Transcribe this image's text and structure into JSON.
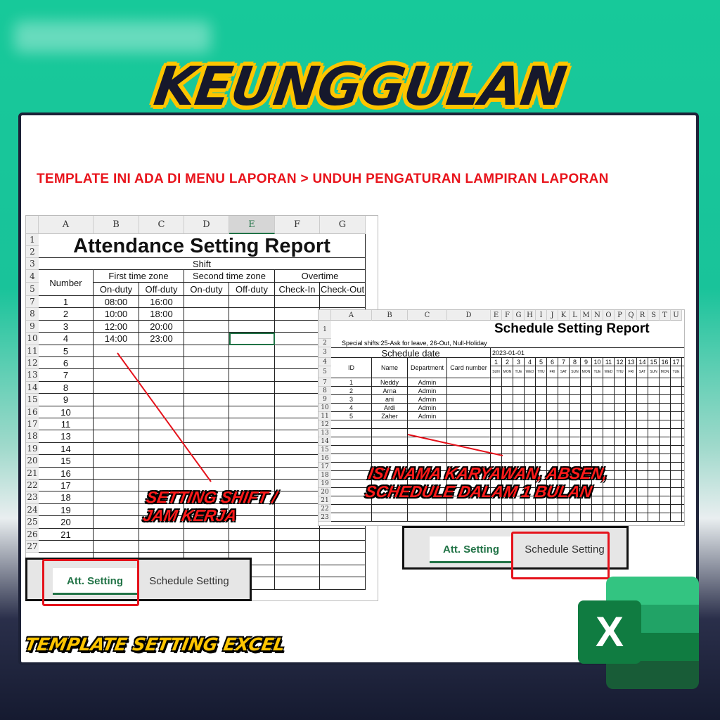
{
  "headline": "KEUNGGULAN",
  "subtitle": "TEMPLATE INI ADA DI MENU LAPORAN > UNDUH PENGATURAN LAMPIRAN LAPORAN",
  "attendance_sheet": {
    "columns": [
      "A",
      "B",
      "C",
      "D",
      "E",
      "F",
      "G"
    ],
    "selected_column": "E",
    "title": "Attendance Setting Report",
    "shift_label": "Shift",
    "number_label": "Number",
    "groups": [
      "First time zone",
      "Second time zone",
      "Overtime"
    ],
    "subheaders": [
      "On-duty",
      "Off-duty",
      "On-duty",
      "Off-duty",
      "Check-In",
      "Check-Out"
    ],
    "rows": [
      [
        "1",
        "08:00",
        "16:00"
      ],
      [
        "2",
        "10:00",
        "18:00"
      ],
      [
        "3",
        "12:00",
        "20:00"
      ],
      [
        "4",
        "14:00",
        "23:00"
      ],
      [
        "5"
      ],
      [
        "6"
      ],
      [
        "7"
      ],
      [
        "8"
      ],
      [
        "9"
      ],
      [
        "10"
      ],
      [
        "11"
      ],
      [
        "13"
      ],
      [
        "14"
      ],
      [
        "15"
      ],
      [
        "16"
      ],
      [
        "17"
      ],
      [
        "18"
      ],
      [
        "19"
      ],
      [
        "20"
      ],
      [
        "21"
      ]
    ]
  },
  "schedule_sheet": {
    "columns": [
      "A",
      "B",
      "C",
      "D",
      "E",
      "F",
      "G",
      "H",
      "I",
      "J",
      "K",
      "L",
      "M",
      "N",
      "O",
      "P",
      "Q",
      "R",
      "S",
      "T",
      "U"
    ],
    "title": "Schedule Setting Report",
    "special_shifts": "Special shifts:25-Ask for leave, 26-Out, Null-Holiday",
    "schedule_date_label": "Schedule date",
    "start_date": "2023-01-01",
    "headers": [
      "ID",
      "Name",
      "Department",
      "Card number"
    ],
    "days": [
      "1",
      "2",
      "3",
      "4",
      "5",
      "6",
      "7",
      "8",
      "9",
      "10",
      "11",
      "12",
      "13",
      "14",
      "15",
      "16",
      "17"
    ],
    "weekdays": [
      "SUN",
      "MON",
      "TUE",
      "WED",
      "THU",
      "FRI",
      "SAT",
      "SUN",
      "MON",
      "TUE",
      "WED",
      "THU",
      "FRI",
      "SAT",
      "SUN",
      "MON",
      "TUE"
    ],
    "employees": [
      [
        "1",
        "Neddy",
        "Admin"
      ],
      [
        "2",
        "Arna",
        "Admin"
      ],
      [
        "3",
        "ani",
        "Admin"
      ],
      [
        "4",
        "Ardi",
        "Admin"
      ],
      [
        "5",
        "Zaher",
        "Admin"
      ]
    ]
  },
  "tabs": {
    "att": "Att. Setting",
    "schedule": "Schedule Setting"
  },
  "annotations": {
    "shift_line1": "SETTING SHIFT /",
    "shift_line2": "JAM KERJA",
    "employee_line1": "ISI NAMA KARYAWAN, ABSEN,",
    "employee_line2": "SCHEDULE DALAM 1 BULAN"
  },
  "footer": "TEMPLATE SETTING EXCEL",
  "logo": {
    "letter": "X"
  },
  "colors": {
    "accent_green": "#17c99a",
    "highlight_red": "#e5121b",
    "headline_yellow": "#fdc500",
    "excel_green": "#217346"
  }
}
